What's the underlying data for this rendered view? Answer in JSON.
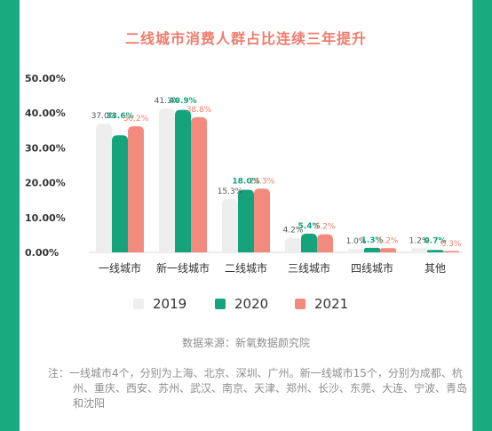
{
  "title": "二线城市消费人群占比连续三年提升",
  "source": "数据来源：新氧数据颜究院",
  "note": "注：一线城市4个，分别为上海、北京、深圳、广州。新一线城市15个，分别为成都、杭州、重庆、西安、苏州、武汉、南京、天津、郑州、长沙、东莞、大连、宁波、青岛和沈阳",
  "colors": {
    "2019": "#eeeeee",
    "2020": "#14a37b",
    "2021": "#f28b7e"
  },
  "chart_data": {
    "type": "bar",
    "title": "二线城市消费人群占比连续三年提升",
    "xlabel": "",
    "ylabel": "",
    "ylim": [
      0,
      50
    ],
    "yticks": [
      "0.00%",
      "10.00%",
      "20.00%",
      "30.00%",
      "40.00%",
      "50.00%"
    ],
    "grid": false,
    "legend": "bottom",
    "categories": [
      "一线城市",
      "新一线城市",
      "二线城市",
      "三线城市",
      "四线城市",
      "其他"
    ],
    "series": [
      {
        "name": "2019",
        "values": [
          37.0,
          41.3,
          15.3,
          4.2,
          1.0,
          1.2
        ],
        "labels": [
          "37.0%",
          "41.3%",
          "15.3%",
          "4.2%",
          "1.0%",
          "1.2%"
        ]
      },
      {
        "name": "2020",
        "values": [
          33.6,
          40.9,
          18.0,
          5.4,
          1.3,
          0.7
        ],
        "labels": [
          "33.6%",
          "40.9%",
          "18.0%",
          "5.4%",
          "1.3%",
          "0.7%"
        ]
      },
      {
        "name": "2021",
        "values": [
          36.2,
          38.8,
          18.3,
          5.2,
          1.2,
          0.3
        ],
        "labels": [
          "36.2%",
          "38.8%",
          "18.3%",
          "5.2%",
          "1.2%",
          "0.3%"
        ]
      }
    ]
  }
}
